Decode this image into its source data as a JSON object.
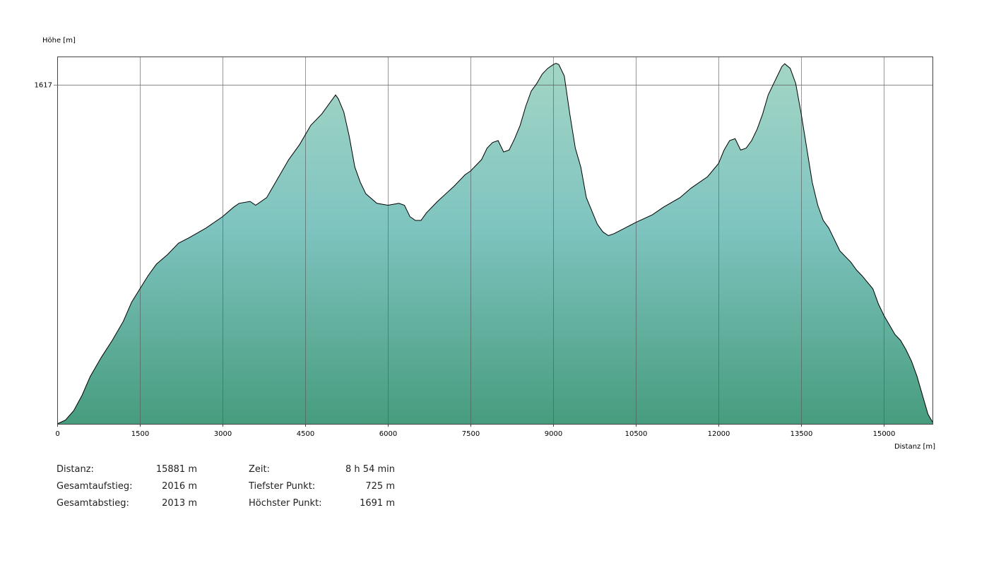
{
  "chart_data": {
    "type": "area",
    "ylabel": "Höhe [m]",
    "xlabel": "Distanz [m]",
    "x_ticks": [
      "0",
      "1500",
      "3000",
      "4500",
      "6000",
      "7500",
      "9000",
      "10500",
      "12000",
      "13500",
      "15000"
    ],
    "x_tick_values": [
      0,
      1500,
      3000,
      4500,
      6000,
      7500,
      9000,
      10500,
      12000,
      13500,
      15000
    ],
    "y_tick_labels": [
      "1617"
    ],
    "y_tick_values": [
      1617
    ],
    "xlim": [
      0,
      15881
    ],
    "ylim": [
      725,
      1691
    ],
    "grid": true,
    "colors": {
      "fill_top": "#a3d5c5",
      "fill_mid": "#7fc4c0",
      "fill_bottom": "#479c7e",
      "line": "#000000",
      "grid": "#555555"
    },
    "x": [
      0,
      150,
      300,
      450,
      600,
      800,
      1000,
      1200,
      1350,
      1500,
      1650,
      1800,
      2000,
      2200,
      2400,
      2700,
      3000,
      3200,
      3300,
      3500,
      3600,
      3800,
      4000,
      4200,
      4400,
      4600,
      4800,
      5000,
      5050,
      5100,
      5200,
      5300,
      5400,
      5500,
      5600,
      5800,
      6000,
      6200,
      6300,
      6400,
      6500,
      6600,
      6700,
      6900,
      7200,
      7400,
      7500,
      7700,
      7800,
      7900,
      8000,
      8100,
      8200,
      8300,
      8400,
      8500,
      8600,
      8700,
      8800,
      8900,
      9000,
      9050,
      9100,
      9200,
      9300,
      9400,
      9500,
      9600,
      9700,
      9800,
      9900,
      10000,
      10100,
      10300,
      10500,
      10800,
      11000,
      11300,
      11500,
      11800,
      12000,
      12100,
      12200,
      12300,
      12400,
      12500,
      12600,
      12700,
      12800,
      12900,
      13000,
      13100,
      13150,
      13200,
      13300,
      13400,
      13500,
      13600,
      13700,
      13800,
      13900,
      14000,
      14200,
      14400,
      14500,
      14600,
      14800,
      14900,
      15000,
      15100,
      15200,
      15300,
      15400,
      15500,
      15600,
      15700,
      15800,
      15881
    ],
    "y": [
      725,
      735,
      760,
      800,
      850,
      900,
      945,
      995,
      1045,
      1080,
      1115,
      1145,
      1170,
      1200,
      1215,
      1240,
      1270,
      1295,
      1305,
      1310,
      1300,
      1320,
      1370,
      1420,
      1460,
      1510,
      1540,
      1580,
      1590,
      1580,
      1545,
      1480,
      1400,
      1360,
      1330,
      1305,
      1300,
      1305,
      1300,
      1270,
      1260,
      1260,
      1280,
      1310,
      1350,
      1380,
      1390,
      1420,
      1450,
      1465,
      1470,
      1440,
      1445,
      1475,
      1510,
      1560,
      1600,
      1620,
      1645,
      1660,
      1670,
      1673,
      1670,
      1640,
      1540,
      1450,
      1400,
      1320,
      1285,
      1250,
      1230,
      1220,
      1225,
      1240,
      1255,
      1275,
      1295,
      1320,
      1345,
      1375,
      1410,
      1445,
      1470,
      1475,
      1445,
      1450,
      1470,
      1500,
      1540,
      1590,
      1620,
      1650,
      1665,
      1672,
      1660,
      1620,
      1540,
      1450,
      1360,
      1300,
      1260,
      1240,
      1180,
      1150,
      1130,
      1115,
      1080,
      1040,
      1010,
      985,
      960,
      945,
      920,
      890,
      850,
      800,
      750,
      730
    ],
    "stats": [
      {
        "label": "Distanz:",
        "value": "15881 m"
      },
      {
        "label": "Gesamtaufstieg:",
        "value": "2016 m"
      },
      {
        "label": "Gesamtabstieg:",
        "value": "2013 m"
      },
      {
        "label": "Zeit:",
        "value": "8 h 54 min"
      },
      {
        "label": "Tiefster Punkt:",
        "value": "725 m"
      },
      {
        "label": "Höchster Punkt:",
        "value": "1691 m"
      }
    ]
  }
}
